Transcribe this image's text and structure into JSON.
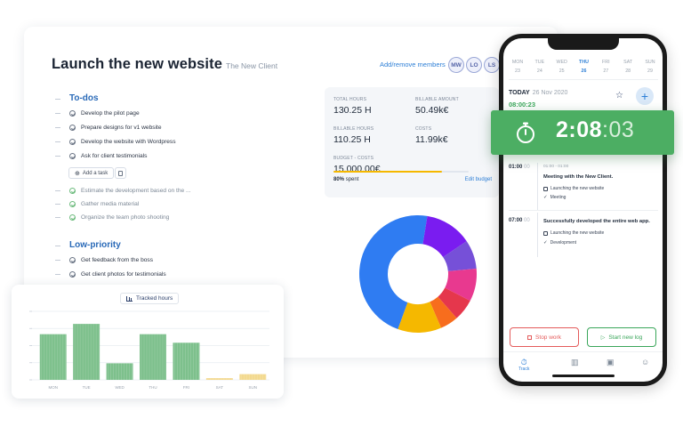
{
  "project": {
    "title": "Launch the new website",
    "client": "The New Client",
    "members_link": "Add/remove members",
    "members": [
      "MW",
      "LO",
      "LS"
    ]
  },
  "todos": {
    "heading": "To-dos",
    "tasks": [
      {
        "label": "Develop the pilot page",
        "done": false
      },
      {
        "label": "Prepare designs for v1 website",
        "done": false
      },
      {
        "label": "Develop the website with Wordpress",
        "done": false
      },
      {
        "label": "Ask for client testimonials",
        "done": false
      }
    ],
    "add_task": "Add a task",
    "completed": [
      {
        "label": "Estimate the development based on the ...",
        "done": true
      },
      {
        "label": "Gather media material",
        "done": true
      },
      {
        "label": "Organize the team photo shooting",
        "done": true
      }
    ]
  },
  "low_priority": {
    "heading": "Low-priority",
    "tasks": [
      {
        "label": "Get feedback from the boss",
        "done": false
      },
      {
        "label": "Get client photos for testimonials",
        "done": false
      }
    ]
  },
  "stats": {
    "total_hours_label": "TOTAL HOURS",
    "total_hours": "130.25 H",
    "billable_amount_label": "BILLABLE AMOUNT",
    "billable_amount": "50.49k€",
    "billable_hours_label": "BILLABLE HOURS",
    "billable_hours": "110.25 H",
    "costs_label": "COSTS",
    "costs": "11.99k€",
    "budget_label": "BUDGET - COSTS",
    "budget": "15,000.00€",
    "spent_pct": "80%",
    "spent_text": "spent",
    "spent_fraction": 0.8,
    "edit_budget": "Edit budget"
  },
  "donut": {
    "slices": [
      {
        "value": 47,
        "color": "#2f7cf2"
      },
      {
        "value": 13,
        "color": "#7a1cf0"
      },
      {
        "value": 8,
        "color": "#7650d8"
      },
      {
        "value": 9,
        "color": "#e8398f"
      },
      {
        "value": 6,
        "color": "#e5374c"
      },
      {
        "value": 5,
        "color": "#f76d1d"
      },
      {
        "value": 12,
        "color": "#f5b800"
      }
    ]
  },
  "tracked_hours": {
    "label": "Tracked hours",
    "chart_data": {
      "type": "bar",
      "categories": [
        "MON",
        "TUE",
        "WED",
        "THU",
        "FRI",
        "SAT",
        "SUN"
      ],
      "values": [
        8,
        9.8,
        2.9,
        8,
        6.5,
        0.3,
        1.0
      ],
      "ylim": [
        0,
        12
      ],
      "colors": {
        "weekday": "#7dc08c",
        "weekend": "#f3d98f"
      },
      "grid": true
    }
  },
  "phone": {
    "days": [
      {
        "name": "MON",
        "num": "23"
      },
      {
        "name": "TUE",
        "num": "24"
      },
      {
        "name": "WED",
        "num": "25"
      },
      {
        "name": "THU",
        "num": "26",
        "active": true
      },
      {
        "name": "FRI",
        "num": "27"
      },
      {
        "name": "SAT",
        "num": "28"
      },
      {
        "name": "SUN",
        "num": "29"
      }
    ],
    "today_label": "TODAY",
    "today_date": "26 Nov 2020",
    "today_total": "08:00:23",
    "timer_main": "2:08",
    "timer_sec": ":03",
    "entries": [
      {
        "time": "01:00",
        "secs": "00",
        "sub": "01:00 - 01:00",
        "title": "Meeting with the New Client.",
        "project": "Launching the new website",
        "tag": "Meeting"
      },
      {
        "time": "07:00",
        "secs": "00",
        "sub": "",
        "title": "Successfully developed the entire web app.",
        "project": "Launching the new website",
        "tag": "Development"
      }
    ],
    "stop_work": "Stop work",
    "start_new_log": "Start new log",
    "tabs": [
      "Track"
    ]
  }
}
